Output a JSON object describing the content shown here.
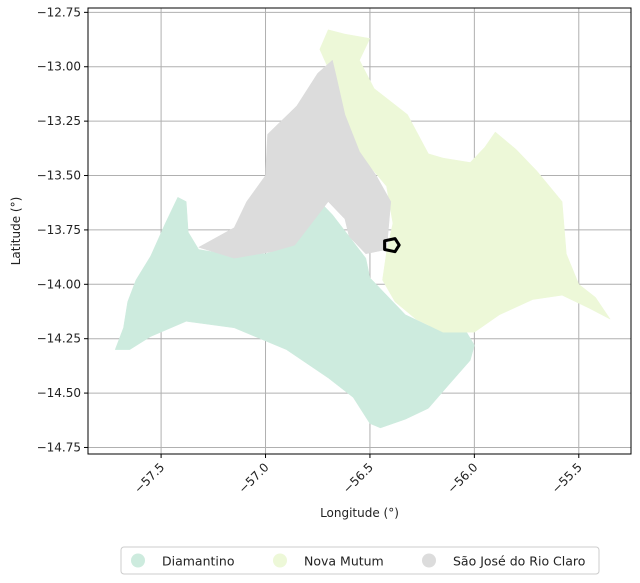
{
  "chart_data": {
    "type": "map",
    "xlabel": "Longitude (°)",
    "ylabel": "Latitude (°)",
    "xlim": [
      -57.85,
      -55.25
    ],
    "ylim": [
      -14.78,
      -12.73
    ],
    "x_ticks": [
      -57.5,
      -57.0,
      -56.5,
      -56.0,
      -55.5
    ],
    "y_ticks": [
      -12.75,
      -13.0,
      -13.25,
      -13.5,
      -13.75,
      -14.0,
      -14.25,
      -14.5,
      -14.75
    ],
    "x_tick_labels": [
      "−57.5",
      "−57.0",
      "−56.5",
      "−56.0",
      "−55.5"
    ],
    "y_tick_labels": [
      "−12.75",
      "−13.00",
      "−13.25",
      "−13.50",
      "−13.75",
      "−14.00",
      "−14.25",
      "−14.50",
      "−14.75"
    ],
    "grid": true,
    "legend_position": "bottom-center",
    "regions": [
      {
        "name": "Diamantino",
        "color": "#cdebde",
        "polygon": [
          [
            -57.72,
            -14.3
          ],
          [
            -57.68,
            -14.2
          ],
          [
            -57.66,
            -14.08
          ],
          [
            -57.62,
            -13.98
          ],
          [
            -57.55,
            -13.87
          ],
          [
            -57.48,
            -13.72
          ],
          [
            -57.42,
            -13.6
          ],
          [
            -57.38,
            -13.62
          ],
          [
            -57.37,
            -13.76
          ],
          [
            -57.32,
            -13.84
          ],
          [
            -57.2,
            -13.86
          ],
          [
            -57.0,
            -13.86
          ],
          [
            -56.86,
            -13.82
          ],
          [
            -56.76,
            -13.6
          ],
          [
            -56.68,
            -13.68
          ],
          [
            -56.6,
            -13.78
          ],
          [
            -56.52,
            -13.88
          ],
          [
            -56.5,
            -13.97
          ],
          [
            -56.46,
            -14.01
          ],
          [
            -56.33,
            -14.14
          ],
          [
            -56.22,
            -14.19
          ],
          [
            -56.05,
            -14.2
          ],
          [
            -56.0,
            -14.28
          ],
          [
            -56.02,
            -14.35
          ],
          [
            -56.13,
            -14.47
          ],
          [
            -56.22,
            -14.57
          ],
          [
            -56.33,
            -14.62
          ],
          [
            -56.45,
            -14.66
          ],
          [
            -56.5,
            -14.64
          ],
          [
            -56.58,
            -14.52
          ],
          [
            -56.7,
            -14.43
          ],
          [
            -56.9,
            -14.3
          ],
          [
            -57.15,
            -14.2
          ],
          [
            -57.38,
            -14.17
          ],
          [
            -57.55,
            -14.24
          ],
          [
            -57.65,
            -14.3
          ]
        ]
      },
      {
        "name": "Nova Mutum",
        "color": "#edf8d8",
        "polygon": [
          [
            -56.74,
            -12.92
          ],
          [
            -56.7,
            -12.83
          ],
          [
            -56.62,
            -12.85
          ],
          [
            -56.5,
            -12.87
          ],
          [
            -56.55,
            -12.97
          ],
          [
            -56.48,
            -13.1
          ],
          [
            -56.32,
            -13.22
          ],
          [
            -56.22,
            -13.4
          ],
          [
            -56.15,
            -13.42
          ],
          [
            -56.02,
            -13.44
          ],
          [
            -55.95,
            -13.37
          ],
          [
            -55.9,
            -13.3
          ],
          [
            -55.8,
            -13.38
          ],
          [
            -55.7,
            -13.48
          ],
          [
            -55.58,
            -13.62
          ],
          [
            -55.56,
            -13.86
          ],
          [
            -55.5,
            -14.0
          ],
          [
            -55.42,
            -14.06
          ],
          [
            -55.35,
            -14.16
          ],
          [
            -55.45,
            -14.11
          ],
          [
            -55.58,
            -14.05
          ],
          [
            -55.72,
            -14.07
          ],
          [
            -55.88,
            -14.14
          ],
          [
            -56.0,
            -14.22
          ],
          [
            -56.15,
            -14.22
          ],
          [
            -56.28,
            -14.16
          ],
          [
            -56.38,
            -14.08
          ],
          [
            -56.44,
            -13.98
          ],
          [
            -56.42,
            -13.85
          ],
          [
            -56.39,
            -13.72
          ],
          [
            -56.42,
            -13.55
          ],
          [
            -56.55,
            -13.4
          ],
          [
            -56.62,
            -13.22
          ],
          [
            -56.68,
            -13.05
          ]
        ]
      },
      {
        "name": "São José do Rio Claro",
        "color": "#dcdcdc",
        "polygon": [
          [
            -56.68,
            -12.97
          ],
          [
            -56.75,
            -13.03
          ],
          [
            -56.85,
            -13.18
          ],
          [
            -56.99,
            -13.31
          ],
          [
            -57.0,
            -13.5
          ],
          [
            -57.09,
            -13.62
          ],
          [
            -57.15,
            -13.74
          ],
          [
            -57.32,
            -13.83
          ],
          [
            -57.15,
            -13.88
          ],
          [
            -56.97,
            -13.85
          ],
          [
            -56.86,
            -13.82
          ],
          [
            -56.78,
            -13.72
          ],
          [
            -56.7,
            -13.62
          ],
          [
            -56.62,
            -13.7
          ],
          [
            -56.6,
            -13.78
          ],
          [
            -56.52,
            -13.86
          ],
          [
            -56.42,
            -13.84
          ],
          [
            -56.4,
            -13.62
          ],
          [
            -56.47,
            -13.5
          ],
          [
            -56.55,
            -13.39
          ],
          [
            -56.62,
            -13.22
          ],
          [
            -56.66,
            -13.05
          ]
        ]
      }
    ],
    "marker": {
      "shape": "outline",
      "polygon": [
        [
          -56.43,
          -13.8
        ],
        [
          -56.38,
          -13.79
        ],
        [
          -56.36,
          -13.82
        ],
        [
          -56.38,
          -13.85
        ],
        [
          -56.43,
          -13.84
        ]
      ]
    }
  },
  "legend": {
    "items": [
      {
        "label": "Diamantino",
        "color": "#cdebde"
      },
      {
        "label": "Nova Mutum",
        "color": "#edf8d8"
      },
      {
        "label": "São José do Rio Claro",
        "color": "#dcdcdc"
      }
    ]
  },
  "colors": {
    "grid": "#b0b0b0",
    "axis": "#000000",
    "marker": "#000000"
  }
}
